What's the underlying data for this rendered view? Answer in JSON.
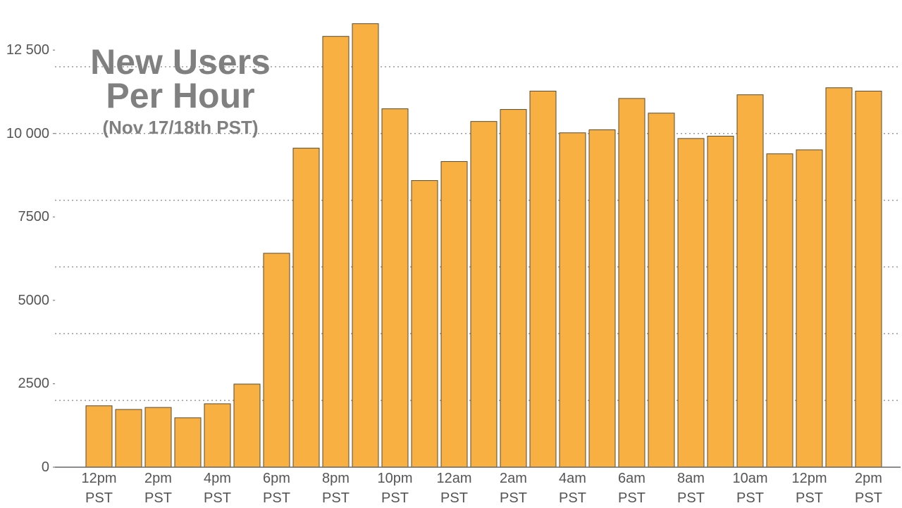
{
  "chart_data": {
    "type": "bar",
    "title": "New Users Per Hour",
    "subtitle": "(Nov 17/18th PST)",
    "categories": [
      "12pm PST",
      null,
      "2pm PST",
      null,
      "4pm PST",
      null,
      "6pm PST",
      null,
      "8pm PST",
      null,
      "10pm PST",
      null,
      "12am PST",
      null,
      "2am PST",
      null,
      "4am PST",
      null,
      "6am PST",
      null,
      "8am PST",
      null,
      "10am PST",
      null,
      "12pm PST",
      null,
      "2pm PST"
    ],
    "values": [
      1840,
      1730,
      1790,
      1480,
      1900,
      2490,
      6410,
      9560,
      12910,
      13290,
      10740,
      8590,
      9160,
      10360,
      10720,
      11270,
      10020,
      10110,
      11050,
      10610,
      9850,
      9920,
      11160,
      9390,
      9510,
      11370,
      11270
    ],
    "color": "#f8b042",
    "ylim": [
      0,
      14000
    ],
    "yticks": [
      0,
      2500,
      5000,
      7500,
      {
        "value": 10000,
        "label": "10 000"
      },
      {
        "value": 12500,
        "label": "12 500"
      }
    ],
    "ygrid": [
      2000,
      4000,
      6000,
      8000,
      10000,
      12000
    ],
    "grid": true
  }
}
